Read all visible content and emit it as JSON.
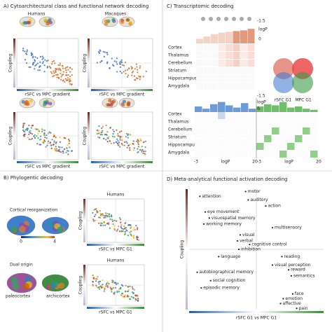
{
  "panel_a": {
    "title": "A) Cytoarchitectural class and functional network decoding",
    "humans": "Humans",
    "macaques": "Macaques",
    "y_label": "Coupling",
    "x_label": "rSFC vs MPC gradient"
  },
  "panel_b": {
    "title": "B) Phylogentic decoding",
    "reorganization": "Cortical reorganization",
    "scale_min": "0",
    "scale_max": "4",
    "humans": "Humans",
    "y_label": "Coupling",
    "x_label": "rSFC vs MPC G1",
    "dual_origin": "Dual origin",
    "paleocortex": "paleocortex",
    "archicortex": "archicortex"
  },
  "panel_c": {
    "title": "C) Transcriptomic decoding",
    "top_scale": "-1.5",
    "log_p": "logP",
    "zero": "0",
    "rows": [
      "Cortex",
      "Thalamus",
      "Cerebellum",
      "Striatum",
      "Hippocampus",
      "Amygdala"
    ],
    "venn_left": "rSFC G1",
    "venn_right": "MPC G1",
    "amp": "&",
    "axis_min": "-3",
    "axis_max": "20"
  },
  "panel_d": {
    "title": "D) Meta-analytical functional activation decoding",
    "y_label": "Coupling",
    "x_label": "rSFC G1 vs MPC G1",
    "terms": [
      "attention",
      "motor",
      "auditory",
      "action",
      "eye movement",
      "visuospatial memory",
      "working memory",
      "multisensory",
      "visual",
      "verbal",
      "cognitive control",
      "inhibition",
      "language",
      "reading",
      "visual perception",
      "reward",
      "semantics",
      "autobiographical memory",
      "social cognition",
      "episodic memory",
      "face",
      "emotion",
      "affective",
      "pain"
    ]
  }
}
